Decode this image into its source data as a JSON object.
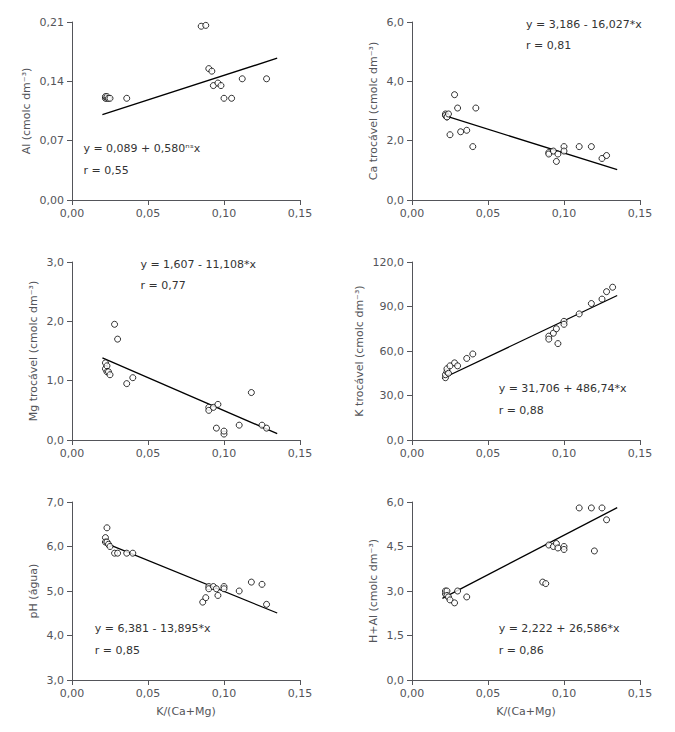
{
  "chart_data": [
    {
      "type": "scatter",
      "ylabel": "Al (cmolc dm⁻³)",
      "annotations": [
        "y = 0,089 + 0,580ⁿˢx",
        "r = 0,55"
      ],
      "xlim": [
        0.0,
        0.15
      ],
      "xticks": [
        {
          "value": 0.0,
          "label": "0,00"
        },
        {
          "value": 0.05,
          "label": "0,05"
        },
        {
          "value": 0.1,
          "label": "0,10"
        },
        {
          "value": 0.15,
          "label": "0,15"
        }
      ],
      "ylim": [
        0.0,
        0.21
      ],
      "yticks": [
        {
          "value": 0.0,
          "label": "0,00"
        },
        {
          "value": 0.07,
          "label": "0,07"
        },
        {
          "value": 0.14,
          "label": "0,14"
        },
        {
          "value": 0.21,
          "label": "0,21"
        }
      ],
      "grid": false,
      "series": [
        {
          "type": "scatter",
          "marker": "open_circle",
          "color": "black",
          "x": [
            0.022,
            0.022,
            0.023,
            0.023,
            0.024,
            0.025,
            0.036,
            0.085,
            0.088,
            0.09,
            0.092,
            0.093,
            0.096,
            0.098,
            0.1,
            0.105,
            0.112,
            0.128
          ],
          "values": [
            0.12,
            0.122,
            0.12,
            0.122,
            0.12,
            0.12,
            0.12,
            0.205,
            0.206,
            0.155,
            0.152,
            0.135,
            0.138,
            0.135,
            0.12,
            0.12,
            0.143,
            0.143
          ]
        },
        {
          "type": "line",
          "line_style": "solid",
          "color": "black",
          "x": [
            0.02,
            0.135
          ],
          "values": [
            0.1006,
            0.1673
          ]
        }
      ]
    },
    {
      "type": "scatter",
      "ylabel": "Ca trocável (cmolc dm⁻³)",
      "annotations": [
        "y = 3,186 - 16,027*x",
        "r = 0,81"
      ],
      "xlim": [
        0.0,
        0.15
      ],
      "xticks": [
        {
          "value": 0.0,
          "label": "0,00"
        },
        {
          "value": 0.05,
          "label": "0,05"
        },
        {
          "value": 0.1,
          "label": "0,10"
        },
        {
          "value": 0.15,
          "label": "0,15"
        }
      ],
      "ylim": [
        0.0,
        6.0
      ],
      "yticks": [
        {
          "value": 0.0,
          "label": "0,0"
        },
        {
          "value": 2.0,
          "label": "2,0"
        },
        {
          "value": 4.0,
          "label": "4,0"
        },
        {
          "value": 6.0,
          "label": "6,0"
        }
      ],
      "grid": false,
      "series": [
        {
          "type": "scatter",
          "marker": "open_circle",
          "color": "black",
          "x": [
            0.022,
            0.022,
            0.023,
            0.023,
            0.024,
            0.025,
            0.028,
            0.03,
            0.032,
            0.036,
            0.04,
            0.042,
            0.09,
            0.09,
            0.093,
            0.095,
            0.096,
            0.1,
            0.1,
            0.11,
            0.118,
            0.125,
            0.128
          ],
          "values": [
            2.9,
            2.85,
            2.8,
            2.8,
            2.9,
            2.2,
            3.55,
            3.1,
            2.3,
            2.35,
            1.8,
            3.1,
            1.6,
            1.55,
            1.65,
            1.3,
            1.55,
            1.8,
            1.65,
            1.8,
            1.8,
            1.4,
            1.5
          ]
        },
        {
          "type": "line",
          "line_style": "solid",
          "color": "black",
          "x": [
            0.02,
            0.135
          ],
          "values": [
            2.86546,
            1.022355
          ]
        }
      ]
    },
    {
      "type": "scatter",
      "ylabel": "Mg trocável (cmolc dm⁻³)",
      "annotations": [
        "y = 1,607 - 11,108*x",
        "r = 0,77"
      ],
      "xlim": [
        0.0,
        0.15
      ],
      "xticks": [
        {
          "value": 0.0,
          "label": "0,00"
        },
        {
          "value": 0.05,
          "label": "0,05"
        },
        {
          "value": 0.1,
          "label": "0,10"
        },
        {
          "value": 0.15,
          "label": "0,15"
        }
      ],
      "ylim": [
        0.0,
        3.0
      ],
      "yticks": [
        {
          "value": 0.0,
          "label": "0,0"
        },
        {
          "value": 1.0,
          "label": "1,0"
        },
        {
          "value": 2.0,
          "label": "2,0"
        },
        {
          "value": 3.0,
          "label": "3,0"
        }
      ],
      "grid": false,
      "series": [
        {
          "type": "scatter",
          "marker": "open_circle",
          "color": "black",
          "x": [
            0.022,
            0.022,
            0.023,
            0.023,
            0.024,
            0.025,
            0.028,
            0.03,
            0.036,
            0.04,
            0.09,
            0.09,
            0.093,
            0.095,
            0.096,
            0.1,
            0.1,
            0.11,
            0.118,
            0.125,
            0.128
          ],
          "values": [
            1.3,
            1.2,
            1.25,
            1.15,
            1.15,
            1.1,
            1.95,
            1.7,
            0.95,
            1.05,
            0.55,
            0.5,
            0.55,
            0.2,
            0.6,
            0.1,
            0.15,
            0.25,
            0.8,
            0.25,
            0.2
          ]
        },
        {
          "type": "line",
          "line_style": "solid",
          "color": "black",
          "x": [
            0.02,
            0.135
          ],
          "values": [
            1.38484,
            0.10742
          ]
        }
      ]
    },
    {
      "type": "scatter",
      "ylabel": "K trocável (cmolc dm⁻³)",
      "annotations": [
        "y = 31,706 + 486,74*x",
        "r = 0,88"
      ],
      "xlim": [
        0.0,
        0.15
      ],
      "xticks": [
        {
          "value": 0.0,
          "label": "0,00"
        },
        {
          "value": 0.05,
          "label": "0,05"
        },
        {
          "value": 0.1,
          "label": "0,10"
        },
        {
          "value": 0.15,
          "label": "0,15"
        }
      ],
      "ylim": [
        0.0,
        120.0
      ],
      "yticks": [
        {
          "value": 0.0,
          "label": "0,0"
        },
        {
          "value": 30.0,
          "label": "30,0"
        },
        {
          "value": 60.0,
          "label": "60,0"
        },
        {
          "value": 90.0,
          "label": "90,0"
        },
        {
          "value": 120.0,
          "label": "120,0"
        }
      ],
      "grid": false,
      "series": [
        {
          "type": "scatter",
          "marker": "open_circle",
          "color": "black",
          "x": [
            0.022,
            0.022,
            0.023,
            0.023,
            0.024,
            0.025,
            0.028,
            0.03,
            0.036,
            0.04,
            0.09,
            0.09,
            0.093,
            0.095,
            0.096,
            0.1,
            0.1,
            0.11,
            0.118,
            0.125,
            0.128,
            0.132
          ],
          "values": [
            42.0,
            44.0,
            46.0,
            48.0,
            45.0,
            50.0,
            52.0,
            50.0,
            55.0,
            58.0,
            70.0,
            68.0,
            72.0,
            75.0,
            65.0,
            80.0,
            78.0,
            85.0,
            92.0,
            95.0,
            100.0,
            103.0
          ]
        },
        {
          "type": "line",
          "line_style": "solid",
          "color": "black",
          "x": [
            0.02,
            0.135
          ],
          "values": [
            41.4408,
            97.4159
          ]
        }
      ]
    },
    {
      "type": "scatter",
      "ylabel": "pH (água)",
      "xlabel": "K/(Ca+Mg)",
      "annotations": [
        "y = 6,381 - 13,895*x",
        "r = 0,85"
      ],
      "xlim": [
        0.0,
        0.15
      ],
      "xticks": [
        {
          "value": 0.0,
          "label": "0,00"
        },
        {
          "value": 0.05,
          "label": "0,05"
        },
        {
          "value": 0.1,
          "label": "0,10"
        },
        {
          "value": 0.15,
          "label": "0,15"
        }
      ],
      "ylim": [
        3.0,
        7.0
      ],
      "yticks": [
        {
          "value": 3.0,
          "label": "3,0"
        },
        {
          "value": 4.0,
          "label": "4,0"
        },
        {
          "value": 5.0,
          "label": "5,0"
        },
        {
          "value": 6.0,
          "label": "6,0"
        },
        {
          "value": 7.0,
          "label": "7,0"
        }
      ],
      "grid": false,
      "series": [
        {
          "type": "scatter",
          "marker": "open_circle",
          "color": "black",
          "x": [
            0.022,
            0.022,
            0.023,
            0.023,
            0.024,
            0.025,
            0.028,
            0.03,
            0.036,
            0.04,
            0.086,
            0.088,
            0.09,
            0.09,
            0.093,
            0.095,
            0.096,
            0.1,
            0.1,
            0.11,
            0.118,
            0.125,
            0.128
          ],
          "values": [
            6.2,
            6.1,
            6.42,
            6.1,
            6.05,
            6.0,
            5.85,
            5.85,
            5.85,
            5.85,
            4.75,
            4.85,
            5.1,
            5.05,
            5.1,
            5.05,
            4.9,
            5.1,
            5.05,
            5.0,
            5.2,
            5.15,
            4.7
          ]
        },
        {
          "type": "line",
          "line_style": "solid",
          "color": "black",
          "x": [
            0.02,
            0.135
          ],
          "values": [
            6.1031,
            4.505175
          ]
        }
      ]
    },
    {
      "type": "scatter",
      "ylabel": "H+Al (cmolc dm⁻³)",
      "xlabel": "K/(Ca+Mg)",
      "annotations": [
        "y = 2,222 + 26,586*x",
        "r = 0,86"
      ],
      "xlim": [
        0.0,
        0.15
      ],
      "xticks": [
        {
          "value": 0.0,
          "label": "0,00"
        },
        {
          "value": 0.05,
          "label": "0,05"
        },
        {
          "value": 0.1,
          "label": "0,10"
        },
        {
          "value": 0.15,
          "label": "0,15"
        }
      ],
      "ylim": [
        0.0,
        6.0
      ],
      "yticks": [
        {
          "value": 0.0,
          "label": "0,0"
        },
        {
          "value": 1.5,
          "label": "1,5"
        },
        {
          "value": 3.0,
          "label": "3,0"
        },
        {
          "value": 4.5,
          "label": "4,5"
        },
        {
          "value": 6.0,
          "label": "6,0"
        }
      ],
      "grid": false,
      "series": [
        {
          "type": "scatter",
          "marker": "open_circle",
          "color": "black",
          "x": [
            0.022,
            0.022,
            0.023,
            0.023,
            0.024,
            0.025,
            0.028,
            0.03,
            0.036,
            0.086,
            0.088,
            0.09,
            0.093,
            0.095,
            0.096,
            0.1,
            0.1,
            0.11,
            0.118,
            0.12,
            0.125,
            0.128
          ],
          "values": [
            2.9,
            3.0,
            3.0,
            2.85,
            2.8,
            2.7,
            2.6,
            3.0,
            2.8,
            3.3,
            3.25,
            4.55,
            4.5,
            4.6,
            4.45,
            4.5,
            4.4,
            5.8,
            5.8,
            4.35,
            5.8,
            5.4
          ]
        },
        {
          "type": "line",
          "line_style": "solid",
          "color": "black",
          "x": [
            0.02,
            0.135
          ],
          "values": [
            2.75372,
            5.81111
          ]
        }
      ]
    }
  ]
}
